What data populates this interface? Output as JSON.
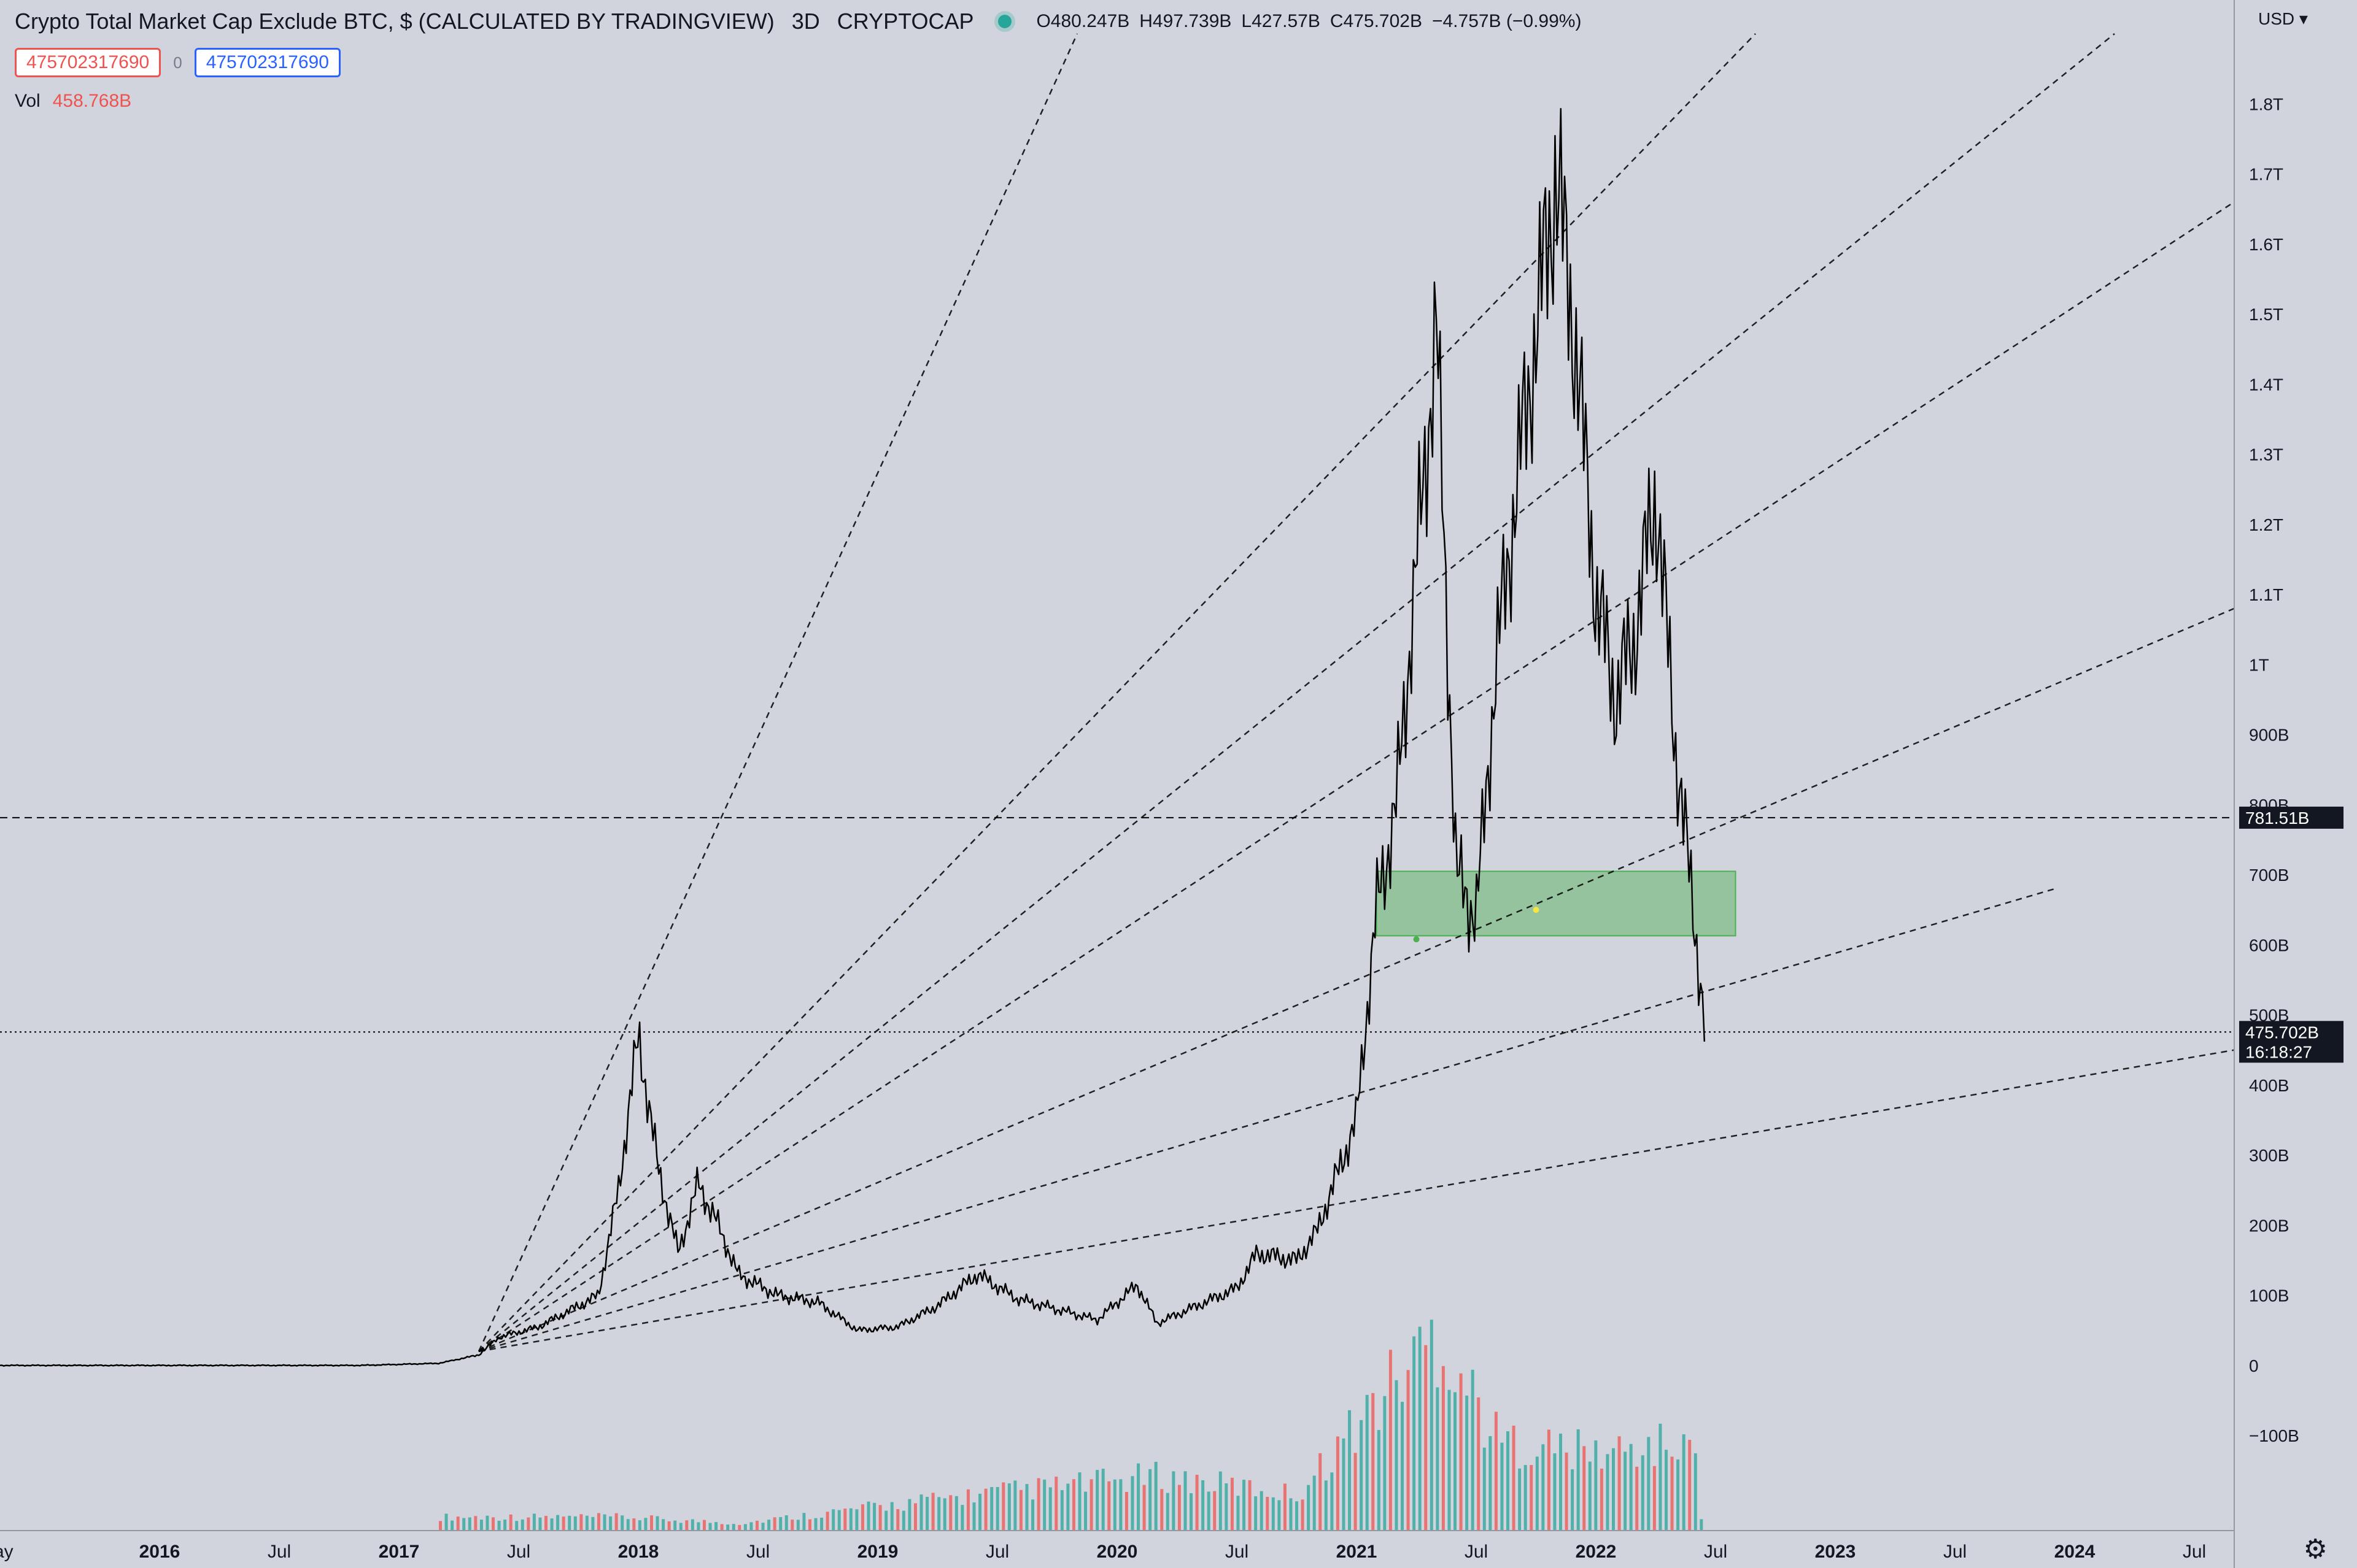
{
  "header": {
    "title": "Crypto Total Market Cap Exclude BTC, $ (CALCULATED BY TRADINGVIEW)",
    "interval": "3D",
    "exchange": "CRYPTOCAP",
    "open": "O480.247B",
    "high": "H497.739B",
    "low": "L427.57B",
    "close": "C475.702B",
    "change": "−4.757B (−0.99%)",
    "sell_value": "475702317690",
    "spread": "0",
    "buy_value": "475702317690",
    "vol_label": "Vol",
    "vol_value": "458.768B",
    "currency": "USD",
    "settings_icon": "gear-icon"
  },
  "colors": {
    "background": "#d1d4dc",
    "up": "#26a69a",
    "down": "#ef5350",
    "zone": "#4caf50",
    "line": "#000000"
  },
  "chart_data": {
    "type": "line",
    "title": "Crypto Total Market Cap Exclude BTC, $ (CALCULATED BY TRADINGVIEW)",
    "series": [
      {
        "values": [
          {
            "x": "2015-05",
            "y": 0
          },
          {
            "x": "2016-11",
            "y": 0
          },
          {
            "x": "2017-03",
            "y": 3
          },
          {
            "x": "2017-05",
            "y": 15
          },
          {
            "x": "2017-06",
            "y": 40
          },
          {
            "x": "2017-08",
            "y": 55
          },
          {
            "x": "2017-09",
            "y": 70
          },
          {
            "x": "2017-11",
            "y": 100
          },
          {
            "x": "2017-12",
            "y": 250
          },
          {
            "x": "2018-01",
            "y": 470
          },
          {
            "x": "2018-02",
            "y": 280
          },
          {
            "x": "2018-03",
            "y": 160
          },
          {
            "x": "2018-04",
            "y": 260
          },
          {
            "x": "2018-05",
            "y": 200
          },
          {
            "x": "2018-06",
            "y": 130
          },
          {
            "x": "2018-08",
            "y": 100
          },
          {
            "x": "2018-10",
            "y": 90
          },
          {
            "x": "2018-12",
            "y": 50
          },
          {
            "x": "2019-02",
            "y": 55
          },
          {
            "x": "2019-04",
            "y": 85
          },
          {
            "x": "2019-06",
            "y": 130
          },
          {
            "x": "2019-08",
            "y": 95
          },
          {
            "x": "2019-10",
            "y": 80
          },
          {
            "x": "2019-12",
            "y": 65
          },
          {
            "x": "2020-02",
            "y": 115
          },
          {
            "x": "2020-03",
            "y": 60
          },
          {
            "x": "2020-05",
            "y": 85
          },
          {
            "x": "2020-07",
            "y": 110
          },
          {
            "x": "2020-08",
            "y": 160
          },
          {
            "x": "2020-10",
            "y": 150
          },
          {
            "x": "2020-11",
            "y": 190
          },
          {
            "x": "2021-01",
            "y": 350
          },
          {
            "x": "2021-02",
            "y": 650
          },
          {
            "x": "2021-03",
            "y": 800
          },
          {
            "x": "2021-05",
            "y": 1480
          },
          {
            "x": "2021-06",
            "y": 700
          },
          {
            "x": "2021-07",
            "y": 640
          },
          {
            "x": "2021-08",
            "y": 1000
          },
          {
            "x": "2021-09",
            "y": 1250
          },
          {
            "x": "2021-11",
            "y": 1700
          },
          {
            "x": "2021-12",
            "y": 1450
          },
          {
            "x": "2022-01",
            "y": 1100
          },
          {
            "x": "2022-02",
            "y": 950
          },
          {
            "x": "2022-03",
            "y": 1050
          },
          {
            "x": "2022-04",
            "y": 1250
          },
          {
            "x": "2022-05",
            "y": 880
          },
          {
            "x": "2022-06",
            "y": 620
          },
          {
            "x": "2022-06-15",
            "y": 475.702
          }
        ]
      },
      {
        "name": "Vol",
        "values": [
          {
            "x": "2017-12",
            "y": 15
          },
          {
            "x": "2018-06",
            "y": 8
          },
          {
            "x": "2019-06",
            "y": 40
          },
          {
            "x": "2020-03",
            "y": 60
          },
          {
            "x": "2020-10",
            "y": 40
          },
          {
            "x": "2021-01",
            "y": 120
          },
          {
            "x": "2021-05",
            "y": 220
          },
          {
            "x": "2021-08",
            "y": 100
          },
          {
            "x": "2022-01",
            "y": 85
          },
          {
            "x": "2022-05",
            "y": 95
          },
          {
            "x": "2022-06",
            "y": 80
          }
        ]
      }
    ],
    "x_ticks": [
      "ay",
      "2016",
      "Jul",
      "2017",
      "Jul",
      "2018",
      "Jul",
      "2019",
      "Jul",
      "2020",
      "Jul",
      "2021",
      "Jul",
      "2022",
      "Jul",
      "2023",
      "Jul",
      "2024",
      "Jul"
    ],
    "y_ticks": [
      "1.8T",
      "1.7T",
      "1.6T",
      "1.5T",
      "1.4T",
      "1.3T",
      "1.2T",
      "1.1T",
      "1T",
      "900B",
      "800B",
      "700B",
      "600B",
      "500B",
      "400B",
      "300B",
      "200B",
      "100B",
      "0",
      "−100B"
    ],
    "xlim": [
      "2015-05",
      "2024-09"
    ],
    "ylim": [
      -170,
      1900
    ],
    "y_unit": "B",
    "grid": false,
    "horizontal_lines": [
      {
        "value": 781.51,
        "label": "781.51B",
        "style": "dashed"
      },
      {
        "value": 475.702,
        "label": "475.702B",
        "sublabel": "16:18:27",
        "style": "dotted"
      }
    ],
    "zone": {
      "x_start": "2021-02",
      "x_end": "2022-08",
      "y_low": 613,
      "y_high": 705
    },
    "fan_lines": [
      {
        "from": {
          "x": "2017-05",
          "y": 20
        },
        "to": {
          "x": "2019-11",
          "y": 1900
        }
      },
      {
        "from": {
          "x": "2017-05",
          "y": 20
        },
        "to": {
          "x": "2022-09",
          "y": 1900
        }
      },
      {
        "from": {
          "x": "2017-05",
          "y": 20
        },
        "to": {
          "x": "2024-03",
          "y": 1900
        }
      },
      {
        "from": {
          "x": "2017-05",
          "y": 20
        },
        "to": {
          "x": "2024-09",
          "y": 1660
        }
      },
      {
        "from": {
          "x": "2017-05",
          "y": 20
        },
        "to": {
          "x": "2024-09",
          "y": 1080
        }
      },
      {
        "from": {
          "x": "2017-05",
          "y": 20
        },
        "to": {
          "x": "2023-12",
          "y": 680
        }
      },
      {
        "from": {
          "x": "2017-05",
          "y": 20
        },
        "to": {
          "x": "2024-09",
          "y": 450
        }
      }
    ]
  }
}
